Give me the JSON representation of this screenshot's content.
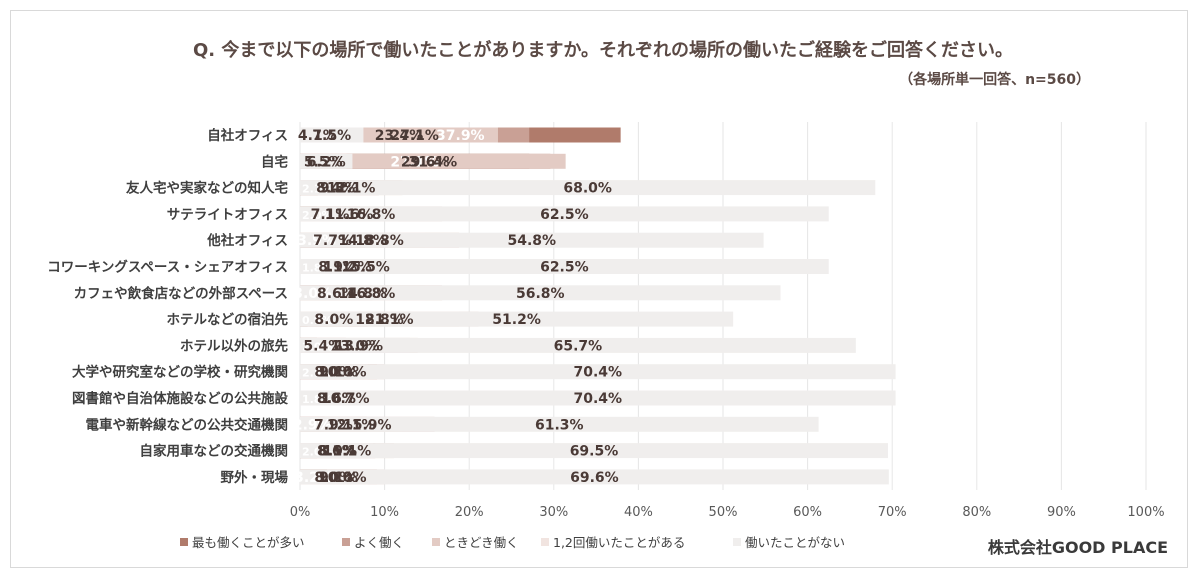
{
  "chart_data": {
    "type": "bar",
    "orientation": "horizontal",
    "stacked": true,
    "title": "Q. 今まで以下の場所で働いたことがありますか。それぞれの場所の働いたご経験をご回答ください。",
    "subtitle": "（各場所単一回答、n=560）",
    "credit": "株式会社GOOD PLACE",
    "xlim": [
      0,
      100
    ],
    "x_ticks": [
      "0%",
      "10%",
      "20%",
      "30%",
      "40%",
      "50%",
      "60%",
      "70%",
      "80%",
      "90%",
      "100%"
    ],
    "legend_position": "bottom",
    "categories": [
      "自社オフィス",
      "自宅",
      "友人宅や実家などの知人宅",
      "サテライトオフィス",
      "他社オフィス",
      "コワーキングスペース・シェアオフィス",
      "カフェや飲食店などの外部スペース",
      "ホテルなどの宿泊先",
      "ホテル以外の旅先",
      "大学や研究室などの学校・研究機関",
      "図書館や自治体施設などの公共施設",
      "電車や新幹線などの公共交通機関",
      "自家用車などの交通機関",
      "野外・現場"
    ],
    "series": [
      {
        "name": "最も働くことが多い",
        "color": "#b07b6b",
        "values": [
          37.9,
          27.1,
          2.1,
          2.0,
          3.9,
          1.8,
          3.0,
          0.9,
          2.0,
          2.5,
          1.8,
          2.9,
          2.0,
          3.2
        ]
      },
      {
        "name": "よく働く",
        "color": "#c9a095",
        "values": [
          27.1,
          29.6,
          9.3,
          7.1,
          7.7,
          8.9,
          8.6,
          8.0,
          5.4,
          9.1,
          8.6,
          7.9,
          8.9,
          9.1
        ]
      },
      {
        "name": "ときどき働く",
        "color": "#e3cbc4",
        "values": [
          23.4,
          31.4,
          12.1,
          16.8,
          18.8,
          15.5,
          16.8,
          21.1,
          13.9,
          10.0,
          10.7,
          15.9,
          11.1,
          10.0
        ]
      },
      {
        "name": "1,2回働いたことがある",
        "color": "#f1e4e0",
        "values": [
          4.1,
          5.5,
          8.4,
          11.6,
          14.8,
          11.2,
          14.8,
          18.8,
          13.0,
          8.0,
          8.6,
          12.1,
          8.6,
          8.0
        ]
      },
      {
        "name": "働いたことがない",
        "color": "#f0eeed",
        "values": [
          7.5,
          6.2,
          68.0,
          62.5,
          54.8,
          62.5,
          56.8,
          51.2,
          65.7,
          70.4,
          70.4,
          61.3,
          69.5,
          69.6
        ]
      }
    ]
  }
}
